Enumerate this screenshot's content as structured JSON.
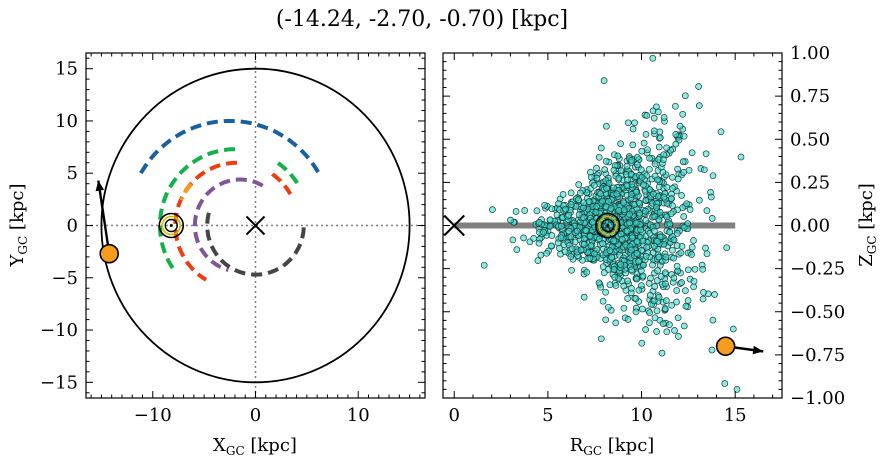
{
  "title": "(-14.24, -2.70, -0.70) [kpc]",
  "chart_data": [
    {
      "type": "scatter",
      "panel": "left",
      "xlabel": "X",
      "xlabel_sub": "GC",
      "xlabel_unit": " [kpc]",
      "ylabel": "Y",
      "ylabel_sub": "GC",
      "ylabel_unit": " [kpc]",
      "xlim": [
        -16.5,
        16.5
      ],
      "ylim": [
        -16.5,
        16.5
      ],
      "xticks": [
        -10,
        0,
        10
      ],
      "xtick_labels": [
        "−10",
        "0",
        "10"
      ],
      "yticks": [
        -15,
        -10,
        -5,
        0,
        5,
        10,
        15
      ],
      "ytick_labels": [
        "−15",
        "−10",
        "−5",
        "0",
        "5",
        "10",
        "15"
      ],
      "boundary_circle_radius": 15,
      "galactic_center": [
        0,
        0
      ],
      "sun": [
        -8.2,
        0
      ],
      "object": {
        "x": -14.24,
        "y": -2.7,
        "vector_to": [
          -15.3,
          4.3
        ]
      },
      "spiral_arms": [
        {
          "color": "#1a5f9e",
          "radius": 10.0,
          "center": [
            -2.5,
            0
          ],
          "theta_start": 150,
          "theta_end": 30
        },
        {
          "color": "#14b04b",
          "radius": 7.3,
          "center": [
            -2.0,
            0
          ],
          "theta_start": 90,
          "theta_end": 215
        },
        {
          "color": "#14b04b",
          "radius": 7.3,
          "center": [
            -2.0,
            0
          ],
          "theta_start": 55,
          "theta_end": 30
        },
        {
          "color": "#ee3d12",
          "radius": 6.0,
          "center": [
            -1.8,
            0
          ],
          "theta_start": 90,
          "theta_end": 240
        },
        {
          "color": "#ee3d12",
          "radius": 6.0,
          "center": [
            -1.8,
            0
          ],
          "theta_start": 55,
          "theta_end": 30
        },
        {
          "color": "#f79d1e",
          "radius": 5.8,
          "center": [
            -2.0,
            0
          ],
          "theta_start": 137,
          "theta_end": 155
        },
        {
          "color": "#7d5798",
          "radius": 4.4,
          "center": [
            -1.5,
            0
          ],
          "theta_start": 60,
          "theta_end": 255
        },
        {
          "color": "#454545",
          "radius": 4.7,
          "center": [
            0,
            0
          ],
          "theta_start": 165,
          "theta_end": 360
        }
      ]
    },
    {
      "type": "scatter",
      "panel": "right",
      "xlabel": "R",
      "xlabel_sub": "GC",
      "xlabel_unit": " [kpc]",
      "ylabel": "Z",
      "ylabel_sub": "GC",
      "ylabel_unit": " [kpc]",
      "xlim": [
        -0.6,
        17.5
      ],
      "ylim": [
        -1.0,
        1.0
      ],
      "xticks": [
        0,
        5,
        10,
        15
      ],
      "xtick_labels": [
        "0",
        "5",
        "10",
        "15"
      ],
      "yticks": [
        -1.0,
        -0.75,
        -0.5,
        -0.25,
        0.0,
        0.25,
        0.5,
        0.75,
        1.0
      ],
      "ytick_labels": [
        "−1.00",
        "−0.75",
        "−0.50",
        "−0.25",
        "0.00",
        "0.25",
        "0.50",
        "0.75",
        "1.00"
      ],
      "disk_band": {
        "x": [
          0,
          15
        ],
        "z": 0
      },
      "galactic_center": [
        0,
        0
      ],
      "sun": [
        8.2,
        0
      ],
      "object": {
        "x": 14.49,
        "y": -0.7,
        "vector_to": [
          16.5,
          -0.73
        ]
      },
      "star_color": "#40e0d0",
      "star_count": 1200,
      "star_distribution": {
        "r_mean": 9.0,
        "r_sd": 2.0,
        "r_min": 1.5,
        "r_max": 16.0,
        "z_sd_inner": 0.08,
        "z_sd_slope": 0.045,
        "bright_outliers": [
          [
            1.6,
            -0.23
          ],
          [
            14.9,
            -0.6
          ],
          [
            13.9,
            -0.4
          ],
          [
            15.1,
            -0.95
          ],
          [
            10.6,
            0.97
          ],
          [
            8.0,
            0.84
          ]
        ]
      }
    }
  ]
}
